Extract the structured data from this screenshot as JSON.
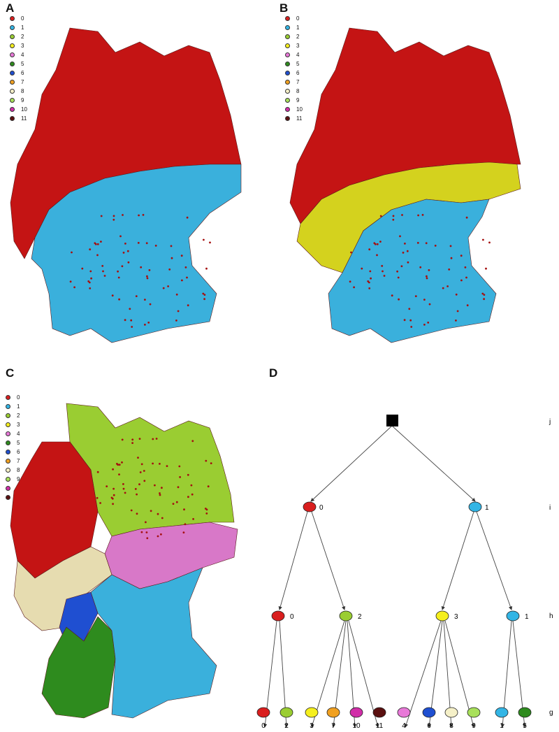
{
  "panels": {
    "a": {
      "letter": "A"
    },
    "b": {
      "letter": "B"
    },
    "c": {
      "letter": "C"
    },
    "d": {
      "letter": "D"
    }
  },
  "legend": [
    {
      "label": "0",
      "color": "#d91e1e"
    },
    {
      "label": "1",
      "color": "#33b5e5"
    },
    {
      "label": "2",
      "color": "#9acd32"
    },
    {
      "label": "3",
      "color": "#f5ef1e"
    },
    {
      "label": "4",
      "color": "#e879d8"
    },
    {
      "label": "5",
      "color": "#2e8b1e"
    },
    {
      "label": "6",
      "color": "#1f4fd1"
    },
    {
      "label": "7",
      "color": "#f0a020"
    },
    {
      "label": "8",
      "color": "#f5f0c8"
    },
    {
      "label": "9",
      "color": "#a8e05a"
    },
    {
      "label": "10",
      "color": "#d12ea8"
    },
    {
      "label": "11",
      "color": "#5a0f0f"
    }
  ],
  "map_colors": {
    "red": "#c41414",
    "blue": "#3ab0dc",
    "yellow": "#d4d21e",
    "lime": "#9acd32",
    "pink": "#d878c8",
    "beige": "#e6dcb0",
    "green": "#2e8b1e",
    "darkblue": "#1f4fd1"
  },
  "tree": {
    "level_labels": {
      "j": "j",
      "i": "i",
      "h": "h",
      "g": "g"
    },
    "root": {
      "color": "#000000"
    },
    "level_i": [
      {
        "label": "0",
        "color": "#d91e1e"
      },
      {
        "label": "1",
        "color": "#33b5e5"
      }
    ],
    "level_h": [
      {
        "label": "0",
        "color": "#d91e1e"
      },
      {
        "label": "2",
        "color": "#9acd32"
      },
      {
        "label": "3",
        "color": "#f5ef1e"
      },
      {
        "label": "1",
        "color": "#33b5e5"
      }
    ],
    "level_g": [
      {
        "label": "0",
        "color": "#d91e1e"
      },
      {
        "label": "2",
        "color": "#9acd32"
      },
      {
        "label": "3",
        "color": "#f5ef1e"
      },
      {
        "label": "7",
        "color": "#f0a020"
      },
      {
        "label": "10",
        "color": "#d12ea8"
      },
      {
        "label": "11",
        "color": "#5a0f0f"
      },
      {
        "label": "4",
        "color": "#e879d8"
      },
      {
        "label": "6",
        "color": "#1f4fd1"
      },
      {
        "label": "8",
        "color": "#f5f0c8"
      },
      {
        "label": "9",
        "color": "#a8e05a"
      },
      {
        "label": "1",
        "color": "#33b5e5"
      },
      {
        "label": "5",
        "color": "#2e8b1e"
      }
    ]
  }
}
